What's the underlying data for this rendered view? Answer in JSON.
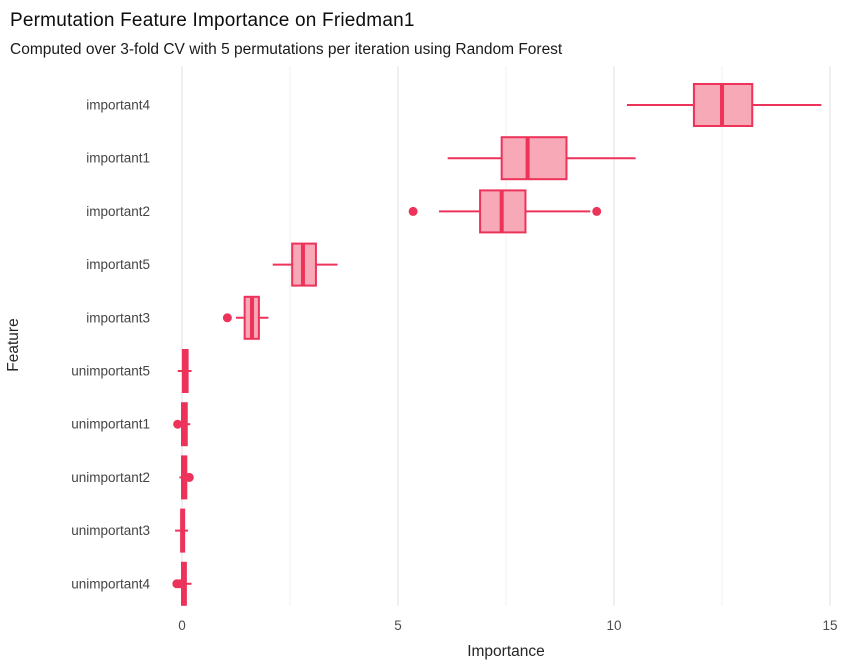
{
  "chart_data": {
    "type": "boxplot",
    "orientation": "horizontal",
    "title": "Permutation Feature Importance on Friedman1",
    "subtitle": "Computed over 3-fold CV with 5 permutations per iteration using Random Forest",
    "xlabel": "Importance",
    "ylabel": "Feature",
    "xlim": [
      -0.55,
      15.35
    ],
    "x_ticks": [
      0,
      5,
      10,
      15
    ],
    "x_minor_ticks": [
      2.5,
      7.5,
      12.5
    ],
    "grid": "vertical-only",
    "legend": "none",
    "categories": [
      "important4",
      "important1",
      "important2",
      "important5",
      "important3",
      "unimportant5",
      "unimportant1",
      "unimportant2",
      "unimportant3",
      "unimportant4"
    ],
    "series": [
      {
        "name": "important4",
        "whisker_low": 10.3,
        "q1": 11.85,
        "median": 12.5,
        "q3": 13.2,
        "whisker_high": 14.8,
        "outliers": []
      },
      {
        "name": "important1",
        "whisker_low": 6.15,
        "q1": 7.4,
        "median": 8.0,
        "q3": 8.9,
        "whisker_high": 10.5,
        "outliers": []
      },
      {
        "name": "important2",
        "whisker_low": 5.95,
        "q1": 6.9,
        "median": 7.4,
        "q3": 7.95,
        "whisker_high": 9.45,
        "outliers": [
          5.35,
          9.6
        ]
      },
      {
        "name": "important5",
        "whisker_low": 2.1,
        "q1": 2.55,
        "median": 2.8,
        "q3": 3.1,
        "whisker_high": 3.6,
        "outliers": []
      },
      {
        "name": "important3",
        "whisker_low": 1.25,
        "q1": 1.45,
        "median": 1.62,
        "q3": 1.78,
        "whisker_high": 2.0,
        "outliers": [
          1.05
        ]
      },
      {
        "name": "unimportant5",
        "whisker_low": -0.1,
        "q1": 0.02,
        "median": 0.07,
        "q3": 0.13,
        "whisker_high": 0.22,
        "outliers": []
      },
      {
        "name": "unimportant1",
        "whisker_low": -0.03,
        "q1": 0.0,
        "median": 0.05,
        "q3": 0.11,
        "whisker_high": 0.19,
        "outliers": [
          -0.1
        ]
      },
      {
        "name": "unimportant2",
        "whisker_low": -0.06,
        "q1": 0.0,
        "median": 0.04,
        "q3": 0.1,
        "whisker_high": 0.16,
        "outliers": [
          0.17
        ]
      },
      {
        "name": "unimportant3",
        "whisker_low": -0.16,
        "q1": -0.02,
        "median": 0.01,
        "q3": 0.05,
        "whisker_high": 0.14,
        "outliers": []
      },
      {
        "name": "unimportant4",
        "whisker_low": -0.08,
        "q1": 0.0,
        "median": 0.03,
        "q3": 0.09,
        "whisker_high": 0.22,
        "outliers": [
          -0.12,
          -0.05
        ]
      }
    ]
  },
  "colors": {
    "box_fill": "#f7a9b8",
    "box_stroke": "#ed335a",
    "grid_major": "#e7e7e7",
    "grid_minor": "#f2f2f2",
    "title_text": "#0d0d0d",
    "axis_title_text": "#262626",
    "tick_text": "#4d4d4d",
    "category_text": "#454545",
    "background": "#ffffff"
  }
}
